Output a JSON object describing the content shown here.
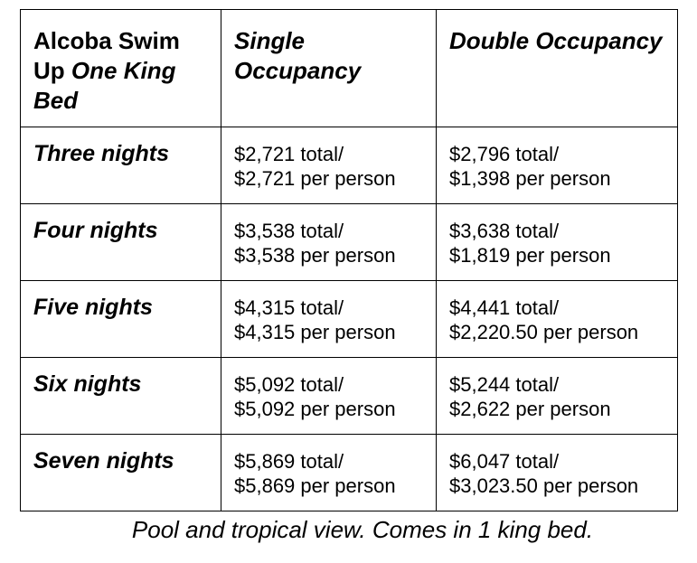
{
  "table": {
    "header": {
      "room_plain": "Alcoba Swim Up",
      "room_italic": "One King Bed",
      "single": "Single Occupancy",
      "double": "Double Occupancy"
    },
    "rows": [
      {
        "nights": "Three nights",
        "single_total": "$2,721 total/",
        "single_per_person": "$2,721 per person",
        "double_total": "$2,796 total/",
        "double_per_person": "$1,398 per person"
      },
      {
        "nights": "Four nights",
        "single_total": "$3,538 total/",
        "single_per_person": "$3,538 per person",
        "double_total": "$3,638 total/",
        "double_per_person": "$1,819 per person"
      },
      {
        "nights": "Five nights",
        "single_total": "$4,315 total/",
        "single_per_person": "$4,315 per person",
        "double_total": "$4,441 total/",
        "double_per_person": "$2,220.50 per person"
      },
      {
        "nights": "Six nights",
        "single_total": "$5,092 total/",
        "single_per_person": "$5,092 per person",
        "double_total": "$5,244 total/",
        "double_per_person": "$2,622 per person"
      },
      {
        "nights": "Seven nights",
        "single_total": "$5,869 total/",
        "single_per_person": "$5,869 per person",
        "double_total": "$6,047 total/",
        "double_per_person": "$3,023.50 per person"
      }
    ]
  },
  "caption": "Pool and tropical view. Comes in 1 king bed."
}
